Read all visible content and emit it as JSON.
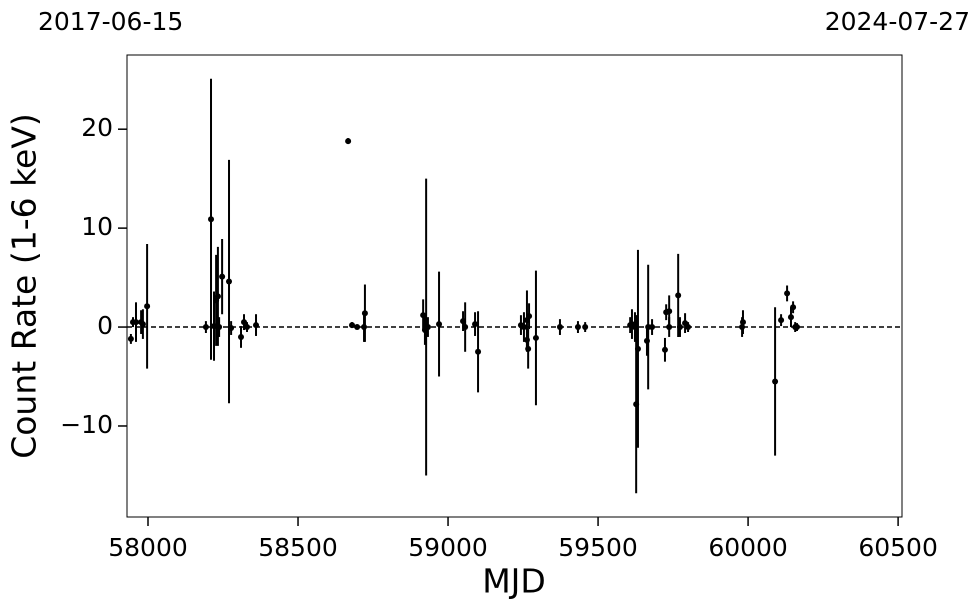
{
  "chart_data": {
    "type": "errorbar",
    "xlabel": "MJD",
    "ylabel": "Count Rate (1-6 keV)",
    "top_labels": [
      "2017-06-15",
      "2024-07-27"
    ],
    "xlim": [
      57930,
      60513
    ],
    "ylim": [
      -19.2,
      27.5
    ],
    "xticks": [
      58000,
      58500,
      59000,
      59500,
      60000,
      60500
    ],
    "yticks": [
      {
        "value": -10,
        "label": "−10"
      },
      0,
      10,
      20
    ],
    "hline": 0,
    "color": "#000000",
    "x": [
      57943,
      57950,
      57960,
      57977,
      57983,
      57997,
      58193,
      58210,
      58220,
      58227,
      58233,
      58237,
      58247,
      58270,
      58277,
      58310,
      58320,
      58330,
      58360,
      58667,
      58680,
      58697,
      58720,
      58723,
      58917,
      58923,
      58927,
      58933,
      58970,
      59050,
      59057,
      59100,
      59090,
      59243,
      59253,
      59263,
      59263,
      59267,
      59270,
      59293,
      59373,
      59433,
      59457,
      59607,
      59613,
      59623,
      59627,
      59633,
      59663,
      59667,
      59680,
      59723,
      59727,
      59737,
      59737,
      59767,
      59773,
      59790,
      59800,
      59980,
      59983,
      60090,
      60110,
      60130,
      60143,
      60150,
      60157,
      60163
    ],
    "values": [
      -1.2,
      0.5,
      0.5,
      0.5,
      0.3,
      2.1,
      0,
      10.9,
      0.1,
      2.7,
      3.1,
      0,
      5.1,
      4.6,
      -0.1,
      -1,
      0.5,
      0,
      0.2,
      18.8,
      0.2,
      0,
      0,
      1.4,
      1.2,
      -0.3,
      0,
      0,
      0.3,
      0.6,
      0,
      -2.5,
      0.3,
      0.2,
      0,
      0.7,
      -1.3,
      -2.2,
      1.1,
      -1.1,
      0,
      0,
      0,
      0.2,
      0.3,
      0,
      -7.8,
      -2.2,
      -1.4,
      0,
      0,
      -2.3,
      1.5,
      1.6,
      0,
      3.2,
      0,
      0.4,
      0,
      0,
      0.5,
      -5.5,
      0.7,
      3.4,
      1,
      2,
      0,
      0
    ],
    "errors": [
      0.5,
      0.5,
      2,
      1.2,
      1.5,
      6.3,
      0.6,
      14.2,
      3.5,
      4.6,
      5,
      1,
      3.8,
      12.3,
      0.7,
      1.1,
      0.8,
      0.5,
      1.1,
      0.3,
      0.3,
      0.2,
      1.5,
      2.9,
      1.6,
      1.5,
      15,
      1,
      5.3,
      1,
      2.5,
      4.1,
      1.2,
      1,
      1.5,
      3,
      1.2,
      2,
      1.3,
      6.8,
      0.8,
      0.6,
      0.5,
      0.8,
      1.5,
      1.5,
      9,
      10,
      1.5,
      6.3,
      0.8,
      1.2,
      0.8,
      1.6,
      1,
      4.2,
      1,
      1,
      0.5,
      1,
      1.2,
      7.5,
      0.6,
      0.8,
      1,
      0.6,
      0.5,
      0.4
    ]
  }
}
